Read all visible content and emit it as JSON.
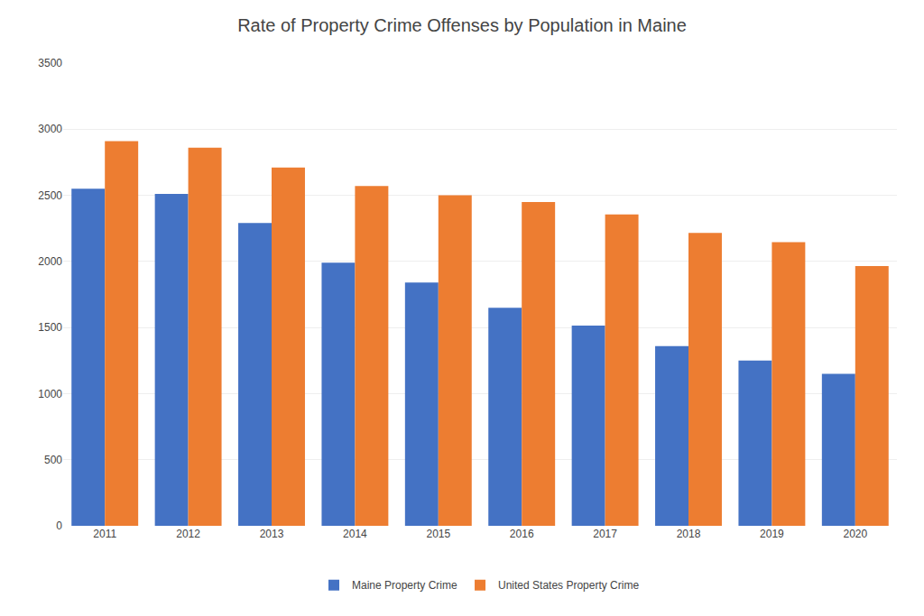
{
  "chart_data": {
    "type": "bar",
    "title": "Rate of Property Crime Offenses by Population in Maine",
    "categories": [
      "2011",
      "2012",
      "2013",
      "2014",
      "2015",
      "2016",
      "2017",
      "2018",
      "2019",
      "2020"
    ],
    "series": [
      {
        "name": "Maine Property Crime",
        "color": "#4472C4",
        "values": [
          2550,
          2510,
          2290,
          1990,
          1840,
          1650,
          1515,
          1360,
          1250,
          1150
        ]
      },
      {
        "name": "United States Property Crime",
        "color": "#ED7D31",
        "values": [
          2910,
          2860,
          2710,
          2570,
          2500,
          2450,
          2355,
          2215,
          2145,
          1965
        ]
      }
    ],
    "ylim": [
      0,
      3500
    ],
    "yticks": [
      0,
      500,
      1000,
      1500,
      2000,
      2500,
      3000,
      3500
    ],
    "grid": true,
    "legend": "bottom"
  }
}
